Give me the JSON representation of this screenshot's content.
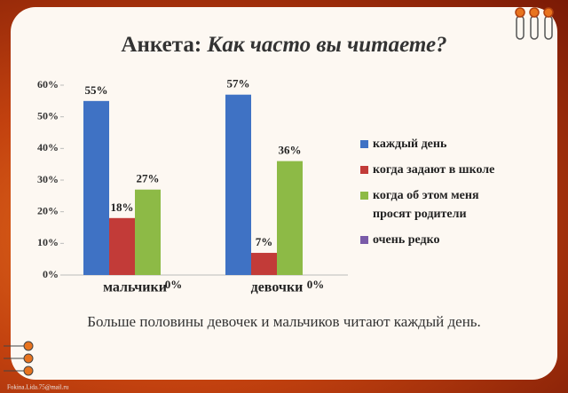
{
  "chart_data": {
    "type": "bar",
    "title_lead": "Анкета:",
    "title": "Как часто вы читаете?",
    "categories": [
      "мальчики",
      "девочки"
    ],
    "series": [
      {
        "name": "каждый день",
        "color": "#3f72c4",
        "values": [
          55,
          57
        ],
        "value_labels": [
          "55%",
          "57%"
        ]
      },
      {
        "name": "когда задают в школе",
        "color": "#c23b38",
        "values": [
          18,
          7
        ],
        "value_labels": [
          "18%",
          "7%"
        ]
      },
      {
        "name": "когда об этом меня просят родители",
        "color": "#8dba46",
        "values": [
          27,
          36
        ],
        "value_labels": [
          "27%",
          "36%"
        ]
      },
      {
        "name": "очень редко",
        "color": "#7a5ba8",
        "values": [
          0,
          0
        ],
        "value_labels": [
          "0%",
          "0%"
        ]
      }
    ],
    "ylim": [
      0,
      60
    ],
    "yticks": [
      {
        "value": 0,
        "label": "0%"
      },
      {
        "value": 10,
        "label": "10%"
      },
      {
        "value": 20,
        "label": "20%"
      },
      {
        "value": 30,
        "label": "30%"
      },
      {
        "value": 40,
        "label": "40%"
      },
      {
        "value": 50,
        "label": "50%"
      },
      {
        "value": 60,
        "label": "60%"
      }
    ],
    "legend": "right",
    "caption": "Больше половины девочек и мальчиков читают каждый день.",
    "footer": "Fokina.Lida.75@mail.ru"
  }
}
